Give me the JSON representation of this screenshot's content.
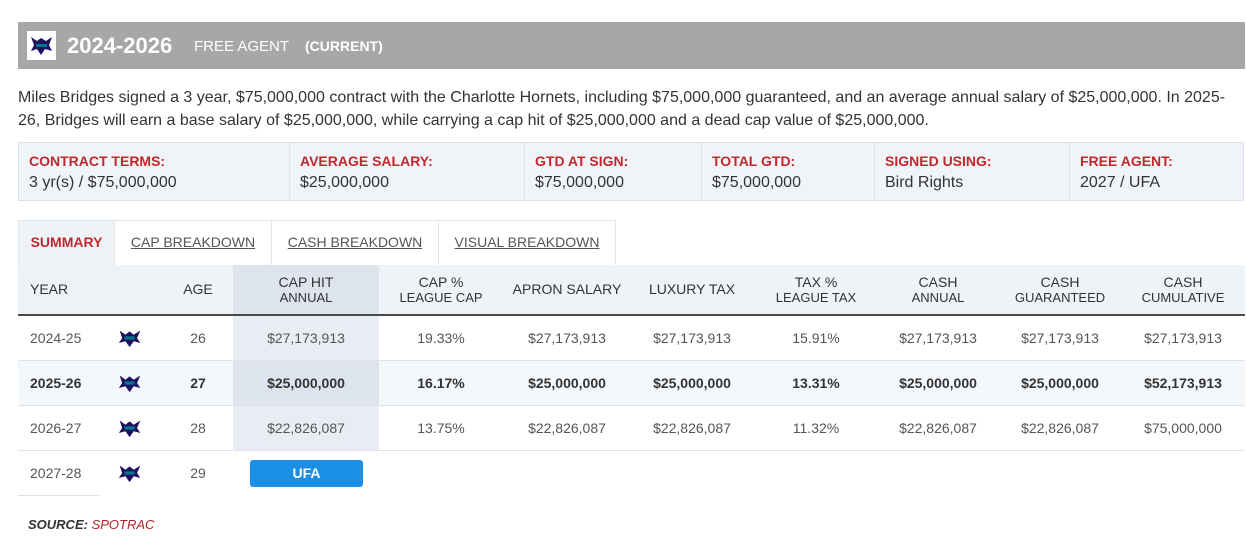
{
  "header": {
    "years": "2024-2026",
    "status": "FREE AGENT",
    "current": "(CURRENT)"
  },
  "summary": "Miles Bridges signed a 3 year, $75,000,000 contract with the Charlotte Hornets, including $75,000,000 guaranteed, and an average annual salary of $25,000,000. In 2025-26, Bridges will earn a base salary of $25,000,000, while carrying a cap hit of $25,000,000 and a dead cap value of $25,000,000.",
  "terms": [
    {
      "label": "CONTRACT TERMS:",
      "value": "3 yr(s) / $75,000,000"
    },
    {
      "label": "AVERAGE SALARY:",
      "value": "$25,000,000"
    },
    {
      "label": "GTD AT SIGN:",
      "value": "$75,000,000"
    },
    {
      "label": "TOTAL GTD:",
      "value": "$75,000,000"
    },
    {
      "label": "SIGNED USING:",
      "value": "Bird Rights"
    },
    {
      "label": "FREE AGENT:",
      "value": "2027 / UFA"
    }
  ],
  "tabs": [
    "SUMMARY",
    "CAP BREAKDOWN",
    "CASH BREAKDOWN",
    "VISUAL BREAKDOWN"
  ],
  "table": {
    "columns": [
      {
        "title": "YEAR"
      },
      {
        "title": "AGE"
      },
      {
        "title": "CAP HIT",
        "subtitle": "ANNUAL"
      },
      {
        "title": "CAP %",
        "subtitle": "LEAGUE CAP"
      },
      {
        "title": "APRON SALARY"
      },
      {
        "title": "LUXURY TAX"
      },
      {
        "title": "TAX %",
        "subtitle": "LEAGUE TAX"
      },
      {
        "title": "CASH",
        "subtitle": "ANNUAL"
      },
      {
        "title": "CASH",
        "subtitle": "GUARANTEED"
      },
      {
        "title": "CASH",
        "subtitle": "CUMULATIVE"
      }
    ],
    "rows": [
      {
        "year": "2024-25",
        "age": "26",
        "cells": [
          "$27,173,913",
          "19.33%",
          "$27,173,913",
          "$27,173,913",
          "15.91%",
          "$27,173,913",
          "$27,173,913",
          "$27,173,913"
        ]
      },
      {
        "year": "2025-26",
        "age": "27",
        "cells": [
          "$25,000,000",
          "16.17%",
          "$25,000,000",
          "$25,000,000",
          "13.31%",
          "$25,000,000",
          "$25,000,000",
          "$52,173,913"
        ]
      },
      {
        "year": "2026-27",
        "age": "28",
        "cells": [
          "$22,826,087",
          "13.75%",
          "$22,826,087",
          "$22,826,087",
          "11.32%",
          "$22,826,087",
          "$22,826,087",
          "$75,000,000"
        ]
      },
      {
        "year": "2027-28",
        "age": "29",
        "status": "UFA"
      }
    ]
  },
  "source": {
    "label": "SOURCE:",
    "name": "SPOTRAC"
  }
}
